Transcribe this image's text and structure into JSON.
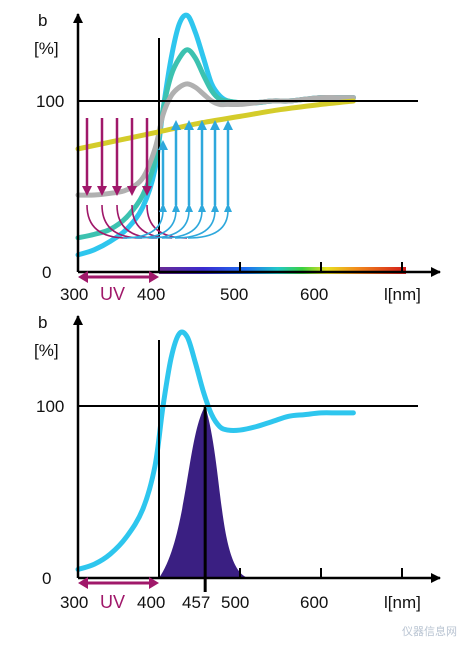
{
  "chart_data": [
    {
      "type": "line",
      "ylabel": "b",
      "yunit": "[%]",
      "xlabel": "l[nm]",
      "xticks": [
        "300",
        "400",
        "500",
        "600"
      ],
      "yticks": [
        "0",
        "100"
      ],
      "uv_label": "UV",
      "spectrum_bar": true,
      "xlim": [
        300,
        640
      ],
      "ylim": [
        0,
        150
      ],
      "series": [
        {
          "color": "#2ec6ee",
          "x": [
            300,
            320,
            340,
            360,
            380,
            395,
            405,
            415,
            425,
            435,
            445,
            455,
            465,
            475,
            485,
            500,
            520,
            540,
            560,
            580,
            600,
            620,
            640
          ],
          "y": [
            10,
            13,
            18,
            25,
            38,
            60,
            95,
            125,
            145,
            150,
            140,
            125,
            110,
            103,
            100,
            99,
            99,
            100,
            100,
            101,
            102,
            102,
            102
          ]
        },
        {
          "color": "#3cc2b0",
          "x": [
            300,
            320,
            340,
            360,
            380,
            395,
            405,
            415,
            425,
            435,
            445,
            455,
            465,
            475,
            485,
            500,
            520,
            540,
            560,
            580,
            600,
            620,
            640
          ],
          "y": [
            20,
            22,
            25,
            32,
            45,
            65,
            95,
            115,
            125,
            130,
            125,
            115,
            106,
            101,
            100,
            99,
            99,
            100,
            100,
            101,
            102,
            102,
            102
          ]
        },
        {
          "color": "#b0b0b0",
          "x": [
            300,
            320,
            340,
            360,
            380,
            395,
            405,
            415,
            425,
            435,
            445,
            455,
            465,
            475,
            485,
            500,
            520,
            540,
            560,
            580,
            600,
            620,
            640
          ],
          "y": [
            45,
            45,
            46,
            48,
            55,
            72,
            92,
            103,
            108,
            110,
            108,
            104,
            100,
            98,
            98,
            98,
            99,
            100,
            100,
            101,
            102,
            102,
            102
          ]
        },
        {
          "color": "#d4cc2a",
          "x": [
            300,
            350,
            400,
            450,
            500,
            550,
            600,
            640
          ],
          "y": [
            72,
            77,
            82,
            87,
            91,
            95,
            98,
            100
          ]
        }
      ],
      "annotations": {
        "down_arrows_color": "#a0186a",
        "up_arrows_color": "#2ea8dc"
      }
    },
    {
      "type": "line",
      "ylabel": "b",
      "yunit": "[%]",
      "xlabel": "l[nm]",
      "xticks": [
        "300",
        "400",
        "457",
        "500",
        "600"
      ],
      "yticks": [
        "0",
        "100"
      ],
      "uv_label": "UV",
      "xlim": [
        300,
        640
      ],
      "ylim": [
        0,
        150
      ],
      "series": [
        {
          "color": "#2ec6ee",
          "x": [
            300,
            320,
            340,
            360,
            380,
            395,
            405,
            415,
            425,
            435,
            445,
            455,
            465,
            475,
            485,
            500,
            520,
            540,
            560,
            580,
            600,
            620,
            640
          ],
          "y": [
            5,
            8,
            14,
            24,
            40,
            65,
            100,
            128,
            142,
            140,
            125,
            108,
            95,
            88,
            86,
            86,
            88,
            91,
            94,
            95,
            96,
            96,
            96
          ]
        }
      ],
      "emission_peak": {
        "x": 457,
        "color": "#3a1f82",
        "x_start": 400,
        "x_end": 510,
        "peak_y": 100
      }
    }
  ],
  "watermark": "仪器信息网"
}
